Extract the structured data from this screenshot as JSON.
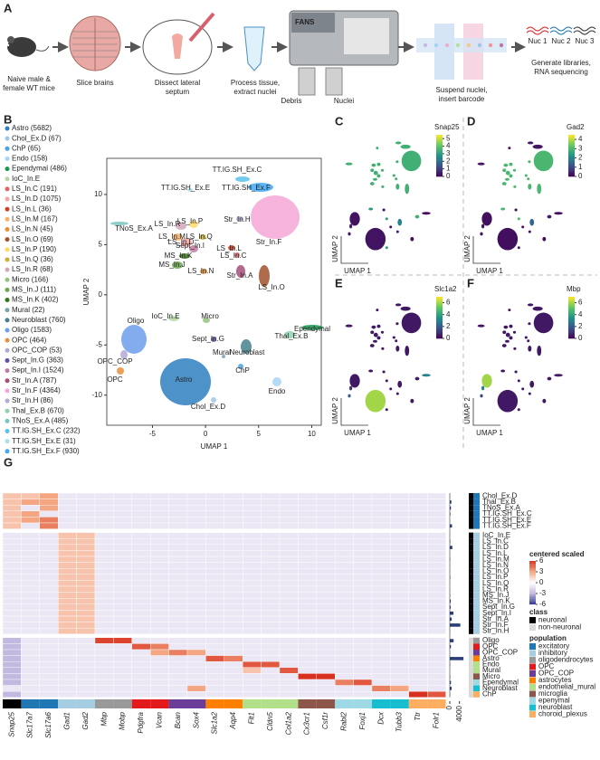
{
  "panel_a": {
    "label": "A",
    "steps": [
      [
        "Naive male &",
        "female WT mice"
      ],
      [
        "Slice brains"
      ],
      [
        "Dissect lateral",
        "septum"
      ],
      [
        "Process tissue,",
        "extract nuclei"
      ],
      [
        "Suspend nuclei,",
        "insert barcode"
      ],
      [
        "Generate libraries,",
        "RNA sequencing"
      ]
    ],
    "fans": "FANS",
    "debris": "Debris",
    "nuclei": "Nuclei",
    "nuc_labels": [
      {
        "text": "Nuc 1",
        "color": "#d62728"
      },
      {
        "text": "Nuc 2",
        "color": "#1f77b4"
      },
      {
        "text": "Nuc 3",
        "color": "#333333"
      }
    ]
  },
  "panel_b": {
    "label": "B",
    "legend": [
      {
        "text": "Astro (5682)",
        "color": "#2f7fc1"
      },
      {
        "text": "Chol_Ex.D (67)",
        "color": "#9fc5e8"
      },
      {
        "text": "ChP (65)",
        "color": "#4aa3df"
      },
      {
        "text": "Endo (158)",
        "color": "#a6d5f7"
      },
      {
        "text": "Ependymal (486)",
        "color": "#1a9850"
      },
      {
        "text": "IoC_In.E",
        "color": "#b6d7a8"
      },
      {
        "text": "LS_In.C (191)",
        "color": "#e06666"
      },
      {
        "text": "LS_In.D (1075)",
        "color": "#f4a6a6"
      },
      {
        "text": "LS_In.L (36)",
        "color": "#cc4125"
      },
      {
        "text": "LS_In.M (167)",
        "color": "#f6b26b"
      },
      {
        "text": "LS_In.N (45)",
        "color": "#e69138"
      },
      {
        "text": "LS_In.O (69)",
        "color": "#a0522d"
      },
      {
        "text": "LS_In.P (190)",
        "color": "#ffd966"
      },
      {
        "text": "LS_In.Q (36)",
        "color": "#c9b037"
      },
      {
        "text": "LS_In.R (68)",
        "color": "#d5a6bd"
      },
      {
        "text": "Micro (166)",
        "color": "#93c47d"
      },
      {
        "text": "MS_In.J (111)",
        "color": "#6aa84f"
      },
      {
        "text": "MS_In.K (402)",
        "color": "#38761d"
      },
      {
        "text": "Mural (22)",
        "color": "#76a5af"
      },
      {
        "text": "Neuroblast (760)",
        "color": "#45818e"
      },
      {
        "text": "Oligo (1583)",
        "color": "#6d9eeb"
      },
      {
        "text": "OPC (464)",
        "color": "#e69138"
      },
      {
        "text": "OPC_COP (53)",
        "color": "#b4a7d6"
      },
      {
        "text": "Sept_In.G (363)",
        "color": "#674ea7"
      },
      {
        "text": "Sept_In.I (1524)",
        "color": "#c27ba0"
      },
      {
        "text": "Str_In.A (787)",
        "color": "#a64d79"
      },
      {
        "text": "Str_In.F (4364)",
        "color": "#f4a7d6"
      },
      {
        "text": "Str_In.H (86)",
        "color": "#b9a9d9"
      },
      {
        "text": "Thal_Ex.B (670)",
        "color": "#8fd1b0"
      },
      {
        "text": "TNoS_Ex.A (485)",
        "color": "#76c7c0"
      },
      {
        "text": "TT.IG.SH_Ex.C (232)",
        "color": "#5bc0eb"
      },
      {
        "text": "TT.IG.SH_Ex.E (31)",
        "color": "#b0e0e6"
      },
      {
        "text": "TT.IG.SH_Ex.F (930)",
        "color": "#3fa9f5"
      }
    ],
    "umap": {
      "xlabel": "UMAP 1",
      "ylabel": "UMAP 2",
      "xlim": [
        -9.3,
        10.9
      ],
      "ylim": [
        -13,
        13.6
      ],
      "xticks": [
        -5,
        0,
        5,
        10
      ],
      "yticks": [
        -10,
        -5,
        0,
        5,
        10
      ],
      "cluster_labels": [
        "TT.IG.SH_Ex.C",
        "TT.IG.SH_Ex.E",
        "TT.IG.SH_Ex.F",
        "TNoS_Ex.A",
        "LS_In.R",
        "LS_In.P",
        "LS_In.M",
        "LS_In.Q",
        "LS_In.D",
        "Str_In.H",
        "Str_In.F",
        "Sept_In.I",
        "LS_In.L",
        "LS_In.C",
        "MS_In.K",
        "MS_In.J",
        "LS_In.N",
        "Str_In.A",
        "LS_In.O",
        "IoC_In.E",
        "Micro",
        "Sept_In.G",
        "Thal_Ex.B",
        "Ependymal",
        "Oligo",
        "Mural",
        "Neuroblast",
        "OPC_COP",
        "ChP",
        "OPC",
        "Endo",
        "Chol_Ex.D",
        "Astro"
      ]
    }
  },
  "feature_panels": [
    {
      "label": "C",
      "gene": "Snap25",
      "lim": [
        0,
        5.5
      ],
      "ticks": [
        0,
        1,
        2,
        3,
        4,
        5
      ],
      "xlabel": "UMAP 1",
      "ylabel": "UMAP 2",
      "expression": [
        3.5,
        3.5,
        3.5,
        3.5,
        3.5,
        3.5,
        3.5,
        3.5,
        3.5,
        3.5,
        3.5,
        3.5,
        3.5,
        3.5,
        3.5,
        3.5,
        3.5,
        3.5,
        3.5,
        3,
        0.3,
        3,
        3.5,
        0.2,
        0.3,
        0.3,
        2.5,
        0.5,
        0.5,
        0.4,
        0.3,
        3,
        0.3
      ]
    },
    {
      "label": "D",
      "gene": "Gad2",
      "lim": [
        0,
        4.5
      ],
      "ticks": [
        0,
        1,
        2,
        3,
        4
      ],
      "xlabel": "UMAP 1",
      "ylabel": "UMAP 2",
      "expression": [
        0.3,
        0.3,
        0.3,
        0.3,
        3,
        3,
        3,
        3,
        3,
        3,
        3,
        3,
        3,
        3,
        3,
        3,
        3,
        3,
        3,
        3,
        0.2,
        3,
        0.3,
        0.2,
        0.2,
        0.2,
        1.5,
        0.2,
        0.2,
        0.2,
        0.2,
        0.3,
        0.2
      ]
    },
    {
      "label": "E",
      "gene": "Slc1a2",
      "lim": [
        0,
        7
      ],
      "ticks": [
        0,
        2,
        4,
        6
      ],
      "xlabel": "UMAP 1",
      "ylabel": "UMAP 2",
      "expression": [
        0.5,
        0.5,
        0.5,
        0.5,
        0.5,
        0.5,
        0.5,
        0.5,
        0.5,
        0.5,
        0.5,
        0.5,
        0.5,
        0.5,
        0.5,
        0.5,
        0.5,
        0.5,
        0.5,
        0.5,
        0.5,
        0.5,
        0.5,
        3,
        0.5,
        0.5,
        0.5,
        1,
        0.5,
        2,
        0.5,
        0.5,
        6
      ]
    },
    {
      "label": "F",
      "gene": "Mbp",
      "lim": [
        0,
        7
      ],
      "ticks": [
        0,
        2,
        4,
        6
      ],
      "xlabel": "UMAP 1",
      "ylabel": "UMAP 2",
      "expression": [
        0.5,
        0.5,
        0.5,
        0.5,
        0.5,
        0.5,
        0.5,
        0.5,
        0.5,
        0.5,
        0.5,
        0.5,
        0.5,
        0.5,
        0.5,
        0.5,
        0.5,
        0.5,
        0.5,
        0.5,
        0.5,
        0.5,
        0.5,
        0.5,
        6,
        0.5,
        0.5,
        3,
        0.5,
        1.5,
        0.5,
        0.5,
        0.5
      ]
    }
  ],
  "panel_g": {
    "label": "G",
    "columns": [
      {
        "gene": "Snap25",
        "color": "#000000"
      },
      {
        "gene": "Slc17a7",
        "color": "#1f78b4"
      },
      {
        "gene": "Slc17a6",
        "color": "#1f78b4"
      },
      {
        "gene": "Gad1",
        "color": "#a6cee3"
      },
      {
        "gene": "Gad2",
        "color": "#a6cee3"
      },
      {
        "gene": "Mbp",
        "color": "#999999"
      },
      {
        "gene": "Mobp",
        "color": "#999999"
      },
      {
        "gene": "Pdgfra",
        "color": "#e31a1c"
      },
      {
        "gene": "Vcan",
        "color": "#e31a1c"
      },
      {
        "gene": "Bcan",
        "color": "#6a3d9a"
      },
      {
        "gene": "Sox4",
        "color": "#6a3d9a"
      },
      {
        "gene": "Slc1a2",
        "color": "#ff7f00"
      },
      {
        "gene": "Aqp4",
        "color": "#ff7f00"
      },
      {
        "gene": "Flt1",
        "color": "#b2df8a"
      },
      {
        "gene": "Cldn5",
        "color": "#b2df8a"
      },
      {
        "gene": "Col1a2",
        "color": "#b2df8a"
      },
      {
        "gene": "Cx3cr1",
        "color": "#8c564b"
      },
      {
        "gene": "Csf1r",
        "color": "#8c564b"
      },
      {
        "gene": "Rabl2",
        "color": "#9edae5"
      },
      {
        "gene": "Foxj1",
        "color": "#9edae5"
      },
      {
        "gene": "Dcx",
        "color": "#17becf"
      },
      {
        "gene": "Tubb3",
        "color": "#17becf"
      },
      {
        "gene": "Ttr",
        "color": "#fdae61"
      },
      {
        "gene": "Folr1",
        "color": "#fdae61"
      }
    ],
    "rows": [
      {
        "name": "Chol_Ex.D",
        "class": "neuronal",
        "population": "excitatory",
        "count": 67
      },
      {
        "name": "Thal_Ex.B",
        "class": "neuronal",
        "population": "excitatory",
        "count": 670
      },
      {
        "name": "TNoS_Ex.A",
        "class": "neuronal",
        "population": "excitatory",
        "count": 485
      },
      {
        "name": "TT.IG.SH_Ex.C",
        "class": "neuronal",
        "population": "excitatory",
        "count": 232
      },
      {
        "name": "TT.IG.SH_Ex.E",
        "class": "neuronal",
        "population": "excitatory",
        "count": 31
      },
      {
        "name": "TT.IG.SH_Ex.F",
        "class": "neuronal",
        "population": "excitatory",
        "count": 930
      },
      {
        "name": "IoC_In.E",
        "class": "neuronal",
        "population": "inhibitory",
        "count": 50
      },
      {
        "name": "LS_In.C",
        "class": "neuronal",
        "population": "inhibitory",
        "count": 191
      },
      {
        "name": "LS_In.D",
        "class": "neuronal",
        "population": "inhibitory",
        "count": 1075
      },
      {
        "name": "LS_In.L",
        "class": "neuronal",
        "population": "inhibitory",
        "count": 36
      },
      {
        "name": "LS_In.M",
        "class": "neuronal",
        "population": "inhibitory",
        "count": 167
      },
      {
        "name": "LS_In.N",
        "class": "neuronal",
        "population": "inhibitory",
        "count": 45
      },
      {
        "name": "LS_In.O",
        "class": "neuronal",
        "population": "inhibitory",
        "count": 69
      },
      {
        "name": "LS_In.P",
        "class": "neuronal",
        "population": "inhibitory",
        "count": 190
      },
      {
        "name": "LS_In.Q",
        "class": "neuronal",
        "population": "inhibitory",
        "count": 36
      },
      {
        "name": "LS_In.R",
        "class": "neuronal",
        "population": "inhibitory",
        "count": 68
      },
      {
        "name": "MS_In.J",
        "class": "neuronal",
        "population": "inhibitory",
        "count": 111
      },
      {
        "name": "MS_In.K",
        "class": "neuronal",
        "population": "inhibitory",
        "count": 402
      },
      {
        "name": "Sept_In.G",
        "class": "neuronal",
        "population": "inhibitory",
        "count": 363
      },
      {
        "name": "Sept_In.I",
        "class": "neuronal",
        "population": "inhibitory",
        "count": 1524
      },
      {
        "name": "Str_In.A",
        "class": "neuronal",
        "population": "inhibitory",
        "count": 787
      },
      {
        "name": "Str_In.F",
        "class": "neuronal",
        "population": "inhibitory",
        "count": 4364
      },
      {
        "name": "Str_In.H",
        "class": "neuronal",
        "population": "inhibitory",
        "count": 86
      },
      {
        "name": "Oligo",
        "class": "non-neuronal",
        "population": "oligodendrocytes",
        "count": 1583
      },
      {
        "name": "OPC",
        "class": "non-neuronal",
        "population": "OPC",
        "count": 464
      },
      {
        "name": "OPC_COP",
        "class": "non-neuronal",
        "population": "OPC_COP",
        "count": 53
      },
      {
        "name": "Astro",
        "class": "non-neuronal",
        "population": "astrocytes",
        "count": 5682
      },
      {
        "name": "Endo",
        "class": "non-neuronal",
        "population": "endothelial_mural",
        "count": 158
      },
      {
        "name": "Mural",
        "class": "non-neuronal",
        "population": "endothelial_mural",
        "count": 22
      },
      {
        "name": "Micro",
        "class": "non-neuronal",
        "population": "microglia",
        "count": 166
      },
      {
        "name": "Ependymal",
        "class": "non-neuronal",
        "population": "epenymal",
        "count": 486
      },
      {
        "name": "Neuroblast",
        "class": "non-neuronal",
        "population": "neuroblast",
        "count": 760
      },
      {
        "name": "ChP",
        "class": "non-neuronal",
        "population": "choroid_plexus",
        "count": 65
      }
    ],
    "default_value": -1,
    "cells": [
      [
        0,
        0,
        2
      ],
      [
        1,
        0,
        2
      ],
      [
        2,
        0,
        2
      ],
      [
        3,
        0,
        2
      ],
      [
        4,
        0,
        2
      ],
      [
        5,
        0,
        2
      ],
      [
        0,
        1,
        2
      ],
      [
        1,
        1,
        3
      ],
      [
        3,
        1,
        3
      ],
      [
        4,
        1,
        3
      ],
      [
        0,
        2,
        3
      ],
      [
        1,
        2,
        3
      ],
      [
        2,
        2,
        3
      ],
      [
        4,
        2,
        4
      ],
      [
        5,
        2,
        4
      ],
      [
        6,
        3,
        2
      ],
      [
        6,
        4,
        2
      ],
      [
        7,
        3,
        2
      ],
      [
        7,
        4,
        2
      ],
      [
        8,
        3,
        2
      ],
      [
        8,
        4,
        2
      ],
      [
        9,
        3,
        2
      ],
      [
        9,
        4,
        2
      ],
      [
        10,
        3,
        2
      ],
      [
        10,
        4,
        2
      ],
      [
        11,
        3,
        2
      ],
      [
        11,
        4,
        2
      ],
      [
        12,
        3,
        2
      ],
      [
        12,
        4,
        2
      ],
      [
        13,
        3,
        2
      ],
      [
        13,
        4,
        2
      ],
      [
        14,
        3,
        2
      ],
      [
        14,
        4,
        2
      ],
      [
        15,
        3,
        2
      ],
      [
        15,
        4,
        2
      ],
      [
        16,
        3,
        2
      ],
      [
        16,
        4,
        2
      ],
      [
        17,
        3,
        2
      ],
      [
        17,
        4,
        2
      ],
      [
        18,
        3,
        2
      ],
      [
        18,
        4,
        2
      ],
      [
        19,
        3,
        2
      ],
      [
        19,
        4,
        2
      ],
      [
        20,
        3,
        2
      ],
      [
        20,
        4,
        2
      ],
      [
        21,
        3,
        2
      ],
      [
        21,
        4,
        2
      ],
      [
        22,
        3,
        2
      ],
      [
        22,
        4,
        2
      ],
      [
        23,
        0,
        -3
      ],
      [
        24,
        0,
        -3
      ],
      [
        25,
        0,
        -3
      ],
      [
        26,
        0,
        -3
      ],
      [
        27,
        0,
        -3
      ],
      [
        28,
        0,
        -3
      ],
      [
        29,
        0,
        -3
      ],
      [
        30,
        0,
        -3
      ],
      [
        32,
        0,
        -3
      ],
      [
        23,
        5,
        5.5
      ],
      [
        23,
        6,
        5.5
      ],
      [
        24,
        7,
        5
      ],
      [
        24,
        8,
        4
      ],
      [
        25,
        8,
        3
      ],
      [
        25,
        9,
        4
      ],
      [
        25,
        10,
        3
      ],
      [
        26,
        11,
        5
      ],
      [
        26,
        12,
        4
      ],
      [
        27,
        13,
        5
      ],
      [
        27,
        14,
        5
      ],
      [
        28,
        13,
        2
      ],
      [
        28,
        15,
        5
      ],
      [
        29,
        16,
        6
      ],
      [
        29,
        17,
        6
      ],
      [
        30,
        18,
        4
      ],
      [
        30,
        19,
        5
      ],
      [
        31,
        10,
        3
      ],
      [
        31,
        20,
        4
      ],
      [
        31,
        21,
        3
      ],
      [
        32,
        22,
        6
      ],
      [
        32,
        23,
        5
      ]
    ],
    "bar_xlim": [
      0,
      6000
    ],
    "bar_xticks": [
      0,
      4000
    ],
    "scale": {
      "title": "centered scaled",
      "lim": [
        -6,
        6
      ],
      "ticks": [
        6,
        3,
        0,
        -3,
        -6
      ]
    },
    "class_legend": {
      "title": "class",
      "items": [
        {
          "name": "neuronal",
          "color": "#000000"
        },
        {
          "name": "non-neuronal",
          "color": "#d9d9d9"
        }
      ]
    },
    "population_legend": {
      "title": "population",
      "items": [
        {
          "name": "excitatory",
          "color": "#1f78b4"
        },
        {
          "name": "inhibitory",
          "color": "#a6cee3"
        },
        {
          "name": "oligodendrocytes",
          "color": "#999999"
        },
        {
          "name": "OPC",
          "color": "#e31a1c"
        },
        {
          "name": "OPC_COP",
          "color": "#6a3d9a"
        },
        {
          "name": "astrocytes",
          "color": "#ff7f00"
        },
        {
          "name": "endothelial_mural",
          "color": "#b2df8a"
        },
        {
          "name": "microglia",
          "color": "#8c564b"
        },
        {
          "name": "epenymal",
          "color": "#9edae5"
        },
        {
          "name": "neuroblast",
          "color": "#17becf"
        },
        {
          "name": "choroid_plexus",
          "color": "#fdae61"
        }
      ]
    }
  }
}
